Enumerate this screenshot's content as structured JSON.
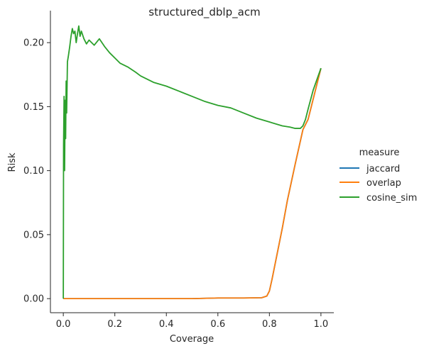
{
  "chart_data": {
    "type": "line",
    "title": "structured_dblp_acm",
    "xlabel": "Coverage",
    "ylabel": "Risk",
    "xlim": [
      -0.05,
      1.05
    ],
    "ylim": [
      -0.011,
      0.225
    ],
    "xticks": [
      0.0,
      0.2,
      0.4,
      0.6,
      0.8,
      1.0
    ],
    "xtick_labels": [
      "0.0",
      "0.2",
      "0.4",
      "0.6",
      "0.8",
      "1.0"
    ],
    "yticks": [
      0.0,
      0.05,
      0.1,
      0.15,
      0.2
    ],
    "ytick_labels": [
      "0.00",
      "0.05",
      "0.10",
      "0.15",
      "0.20"
    ],
    "grid": false,
    "legend": {
      "title": "measure",
      "placement": "right"
    },
    "series": [
      {
        "name": "jaccard",
        "color": "#1f77b4",
        "x": [
          0.0,
          0.1,
          0.2,
          0.3,
          0.4,
          0.5,
          0.6,
          0.7,
          0.77,
          0.79,
          0.8,
          0.81,
          0.83,
          0.85,
          0.87,
          0.9,
          0.93,
          0.95,
          1.0
        ],
        "y": [
          0.0,
          0.0,
          0.0,
          0.0,
          0.0,
          0.0,
          0.0005,
          0.0005,
          0.0007,
          0.002,
          0.006,
          0.015,
          0.035,
          0.055,
          0.077,
          0.105,
          0.132,
          0.14,
          0.18
        ]
      },
      {
        "name": "overlap",
        "color": "#ff7f0e",
        "x": [
          0.0,
          0.1,
          0.2,
          0.3,
          0.4,
          0.5,
          0.6,
          0.7,
          0.77,
          0.79,
          0.8,
          0.81,
          0.83,
          0.85,
          0.87,
          0.9,
          0.93,
          0.95,
          1.0
        ],
        "y": [
          0.0,
          0.0,
          0.0,
          0.0,
          0.0,
          0.0,
          0.0005,
          0.0005,
          0.0007,
          0.002,
          0.006,
          0.015,
          0.035,
          0.055,
          0.077,
          0.105,
          0.132,
          0.14,
          0.18
        ]
      },
      {
        "name": "cosine_sim",
        "color": "#2ca02c",
        "x": [
          0.0,
          0.001,
          0.003,
          0.005,
          0.007,
          0.009,
          0.011,
          0.013,
          0.016,
          0.02,
          0.025,
          0.03,
          0.035,
          0.04,
          0.045,
          0.05,
          0.055,
          0.06,
          0.065,
          0.07,
          0.08,
          0.09,
          0.1,
          0.12,
          0.14,
          0.15,
          0.16,
          0.18,
          0.2,
          0.22,
          0.25,
          0.28,
          0.3,
          0.35,
          0.4,
          0.45,
          0.5,
          0.55,
          0.6,
          0.65,
          0.7,
          0.75,
          0.8,
          0.85,
          0.88,
          0.9,
          0.92,
          0.93,
          0.94,
          0.95,
          0.97,
          1.0
        ],
        "y": [
          0.0,
          0.12,
          0.158,
          0.1,
          0.155,
          0.125,
          0.17,
          0.145,
          0.185,
          0.19,
          0.197,
          0.205,
          0.211,
          0.207,
          0.209,
          0.2,
          0.207,
          0.213,
          0.205,
          0.209,
          0.203,
          0.199,
          0.202,
          0.198,
          0.203,
          0.2,
          0.197,
          0.192,
          0.188,
          0.184,
          0.181,
          0.177,
          0.174,
          0.169,
          0.166,
          0.162,
          0.158,
          0.154,
          0.151,
          0.149,
          0.145,
          0.141,
          0.138,
          0.135,
          0.134,
          0.133,
          0.133,
          0.135,
          0.14,
          0.148,
          0.163,
          0.18
        ]
      }
    ]
  }
}
